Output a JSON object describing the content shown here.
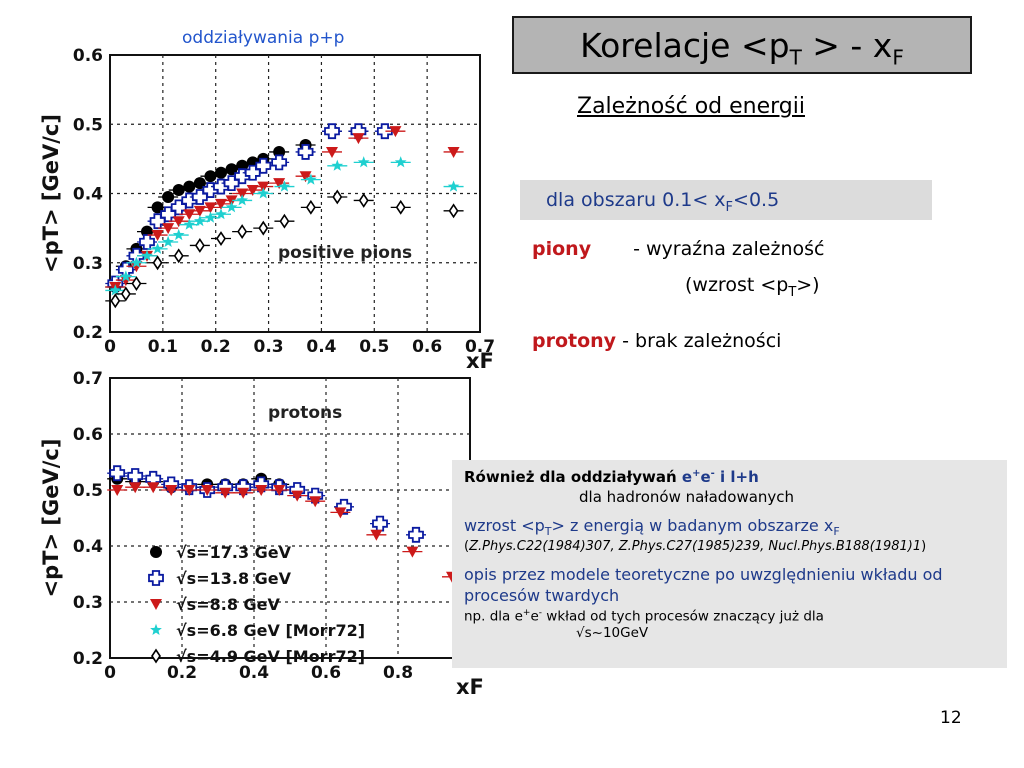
{
  "slide": {
    "top_label": "oddziaływania p+p",
    "title_main": "Korelacje <p",
    "title_sub1": "T",
    "title_mid": " > - x",
    "title_sub2": "F",
    "subtitle": "Zależność od energii",
    "range_text": "dla  obszaru  0.1< x",
    "range_sub": "F",
    "range_end": "<0.5",
    "piony_label": "piony",
    "piony_desc": "- wyraźna zależność",
    "piony_desc2_a": "(wzrost <p",
    "piony_desc2_sub": "T",
    "piony_desc2_b": ">)",
    "protony_label": "protony",
    "protony_desc": " - brak zależności",
    "page_number": "12"
  },
  "info": {
    "line1_a": "Również dla oddziaływań ",
    "line1_b": "e",
    "line1_sup1": "+",
    "line1_c": "e",
    "line1_sup2": "-",
    "line1_d": "  i  l+h",
    "line2": "dla hadronów naładowanych",
    "line3_a": "wzrost <p",
    "line3_sub": "T",
    "line3_b": ">  z energią w badanym obszarze x",
    "line3_sub2": "F",
    "line4_a": "(",
    "line4_b": "Z.Phys.C22(1984)307, Z.Phys.C27(1985)239, Nucl.Phys.B188(1981)1",
    "line4_c": ")",
    "line5": "opis przez modele teoretyczne po uwzględnieniu wkładu od procesów twardych",
    "line6_a": "np. dla e",
    "line6_sup1": "+",
    "line6_b": "e",
    "line6_sup2": "-",
    "line6_c": " wkład od tych procesów znaczący już dla",
    "line7": "√s~10GeV"
  },
  "chart_data": [
    {
      "type": "scatter",
      "panel_label": "positive pions",
      "ylabel": "<pT> [GeV/c]",
      "xlabel": "xF",
      "xlim": [
        0,
        0.7
      ],
      "ylim": [
        0.2,
        0.6
      ],
      "xticks": [
        "0",
        "0.1",
        "0.2",
        "0.3",
        "0.4",
        "0.5",
        "0.6",
        "0.7"
      ],
      "yticks": [
        "0.2",
        "0.3",
        "0.4",
        "0.5",
        "0.6"
      ],
      "grid": true,
      "series": [
        {
          "name": "√s=17.3 GeV",
          "marker": "filled-circle",
          "color": "#000000",
          "x": [
            0.01,
            0.03,
            0.05,
            0.07,
            0.09,
            0.11,
            0.13,
            0.15,
            0.17,
            0.19,
            0.21,
            0.23,
            0.25,
            0.27,
            0.29,
            0.32,
            0.37,
            0.42,
            0.47
          ],
          "y": [
            0.265,
            0.295,
            0.32,
            0.345,
            0.38,
            0.395,
            0.405,
            0.41,
            0.415,
            0.425,
            0.43,
            0.435,
            0.44,
            0.445,
            0.45,
            0.46,
            0.47,
            0.49,
            0.49
          ]
        },
        {
          "name": "√s=13.8 GeV",
          "marker": "open-cross",
          "color": "#0a1aa0",
          "x": [
            0.01,
            0.03,
            0.05,
            0.07,
            0.09,
            0.11,
            0.13,
            0.15,
            0.17,
            0.19,
            0.21,
            0.23,
            0.25,
            0.27,
            0.29,
            0.32,
            0.37,
            0.42,
            0.47,
            0.52
          ],
          "y": [
            0.27,
            0.29,
            0.31,
            0.33,
            0.36,
            0.37,
            0.38,
            0.39,
            0.395,
            0.405,
            0.41,
            0.415,
            0.425,
            0.43,
            0.44,
            0.445,
            0.46,
            0.49,
            0.49,
            0.49
          ]
        },
        {
          "name": "√s=8.8 GeV",
          "marker": "filled-triangle-down",
          "color": "#cc1a1a",
          "x": [
            0.01,
            0.03,
            0.05,
            0.07,
            0.09,
            0.11,
            0.13,
            0.15,
            0.17,
            0.19,
            0.21,
            0.23,
            0.25,
            0.27,
            0.29,
            0.32,
            0.37,
            0.42,
            0.47,
            0.54,
            0.65
          ],
          "y": [
            0.265,
            0.275,
            0.295,
            0.31,
            0.34,
            0.35,
            0.36,
            0.37,
            0.375,
            0.38,
            0.385,
            0.39,
            0.4,
            0.405,
            0.41,
            0.415,
            0.425,
            0.46,
            0.48,
            0.49,
            0.46
          ]
        },
        {
          "name": "√s=6.8 GeV [Morr72]",
          "marker": "filled-star",
          "color": "#1fd0d0",
          "x": [
            0.01,
            0.03,
            0.05,
            0.07,
            0.09,
            0.11,
            0.13,
            0.15,
            0.17,
            0.19,
            0.21,
            0.23,
            0.25,
            0.29,
            0.33,
            0.38,
            0.43,
            0.48,
            0.55,
            0.65
          ],
          "y": [
            0.26,
            0.28,
            0.3,
            0.31,
            0.32,
            0.33,
            0.34,
            0.355,
            0.36,
            0.365,
            0.37,
            0.38,
            0.39,
            0.4,
            0.41,
            0.42,
            0.44,
            0.445,
            0.445,
            0.41
          ]
        },
        {
          "name": "√s=4.9 GeV [Morr72]",
          "marker": "open-diamond",
          "color": "#000000",
          "x": [
            0.01,
            0.03,
            0.05,
            0.09,
            0.13,
            0.17,
            0.21,
            0.25,
            0.29,
            0.33,
            0.38,
            0.43,
            0.48,
            0.55,
            0.65
          ],
          "y": [
            0.245,
            0.255,
            0.27,
            0.3,
            0.31,
            0.325,
            0.335,
            0.345,
            0.35,
            0.36,
            0.38,
            0.395,
            0.39,
            0.38,
            0.375
          ]
        }
      ]
    },
    {
      "type": "scatter",
      "panel_label": "protons",
      "ylabel": "<pT> [GeV/c]",
      "xlabel": "xF",
      "xlim": [
        0,
        1.0
      ],
      "ylim": [
        0.2,
        0.7
      ],
      "xticks": [
        "0",
        "0.2",
        "0.4",
        "0.6",
        "0.8"
      ],
      "yticks": [
        "0.2",
        "0.3",
        "0.4",
        "0.5",
        "0.6",
        "0.7"
      ],
      "grid": true,
      "series": [
        {
          "name": "√s=17.3 GeV",
          "marker": "filled-circle",
          "color": "#000000",
          "x": [
            0.02,
            0.07,
            0.12,
            0.17,
            0.22,
            0.27,
            0.32,
            0.37,
            0.42,
            0.47
          ],
          "y": [
            0.52,
            0.515,
            0.515,
            0.505,
            0.505,
            0.51,
            0.51,
            0.51,
            0.52,
            0.51
          ]
        },
        {
          "name": "√s=13.8 GeV",
          "marker": "open-cross",
          "color": "#0a1aa0",
          "x": [
            0.02,
            0.07,
            0.12,
            0.17,
            0.22,
            0.27,
            0.32,
            0.37,
            0.42,
            0.47,
            0.52,
            0.57,
            0.65,
            0.75,
            0.85
          ],
          "y": [
            0.53,
            0.525,
            0.52,
            0.51,
            0.505,
            0.5,
            0.505,
            0.505,
            0.51,
            0.505,
            0.5,
            0.49,
            0.47,
            0.44,
            0.42
          ]
        },
        {
          "name": "√s=8.8 GeV",
          "marker": "filled-triangle-down",
          "color": "#cc1a1a",
          "x": [
            0.02,
            0.07,
            0.12,
            0.17,
            0.22,
            0.27,
            0.32,
            0.37,
            0.42,
            0.47,
            0.52,
            0.57,
            0.64,
            0.74,
            0.84,
            0.95
          ],
          "y": [
            0.5,
            0.505,
            0.505,
            0.5,
            0.5,
            0.5,
            0.495,
            0.495,
            0.5,
            0.5,
            0.49,
            0.48,
            0.46,
            0.42,
            0.39,
            0.345
          ]
        }
      ]
    }
  ]
}
